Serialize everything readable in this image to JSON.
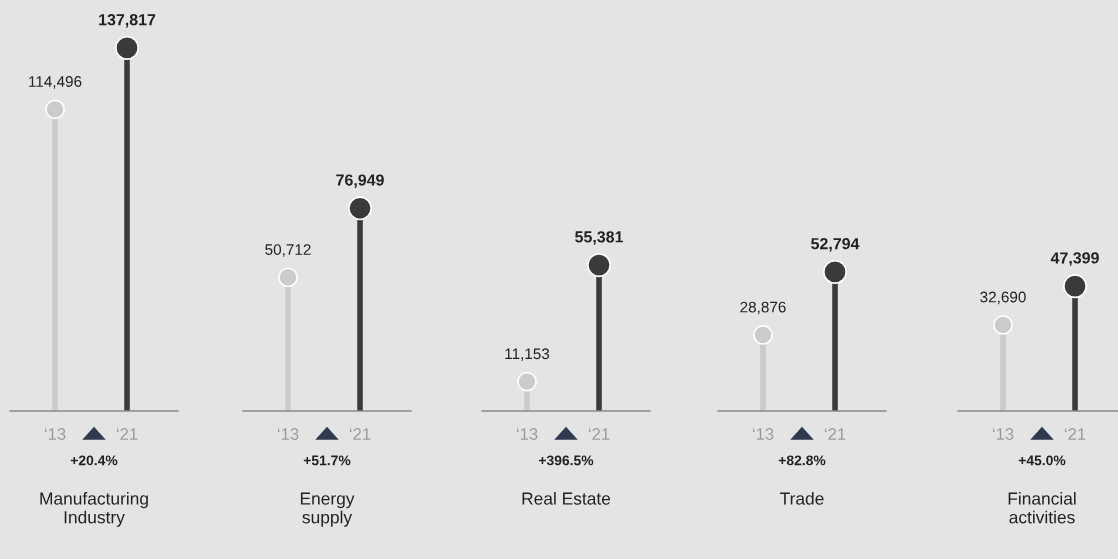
{
  "chart_data": [
    {
      "type": "lollipop",
      "xlabel": "Manufacturing\nIndustry",
      "categories": [
        "‘13",
        "‘21"
      ],
      "values": [
        114496,
        137817
      ],
      "value_labels": [
        "114,496",
        "137,817"
      ],
      "colors": [
        "#cbcbcb",
        "#3a3a3a"
      ],
      "tick_labels": "x",
      "marker": "circle",
      "annotations": [
        "+20.4%"
      ]
    },
    {
      "type": "lollipop",
      "xlabel": "Energy\nsupply",
      "categories": [
        "‘13",
        "‘21"
      ],
      "values": [
        50712,
        76949
      ],
      "value_labels": [
        "50,712",
        "76,949"
      ],
      "colors": [
        "#cbcbcb",
        "#3a3a3a"
      ],
      "tick_labels": "x",
      "marker": "circle",
      "annotations": [
        "+51.7%"
      ]
    },
    {
      "type": "lollipop",
      "xlabel": "Real Estate",
      "categories": [
        "‘13",
        "‘21"
      ],
      "values": [
        11153,
        55381
      ],
      "value_labels": [
        "11,153",
        "55,381"
      ],
      "colors": [
        "#cbcbcb",
        "#3a3a3a"
      ],
      "tick_labels": "x",
      "marker": "circle",
      "annotations": [
        "+396.5%"
      ]
    },
    {
      "type": "lollipop",
      "xlabel": "Trade",
      "categories": [
        "‘13",
        "‘21"
      ],
      "values": [
        28876,
        52794
      ],
      "value_labels": [
        "28,876",
        "52,794"
      ],
      "colors": [
        "#cbcbcb",
        "#3a3a3a"
      ],
      "tick_labels": "x",
      "marker": "circle",
      "annotations": [
        "+82.8%"
      ]
    },
    {
      "type": "lollipop",
      "xlabel": "Financial\nactivities",
      "categories": [
        "‘13",
        "‘21"
      ],
      "values": [
        32690,
        47399
      ],
      "value_labels": [
        "32,690",
        "47,399"
      ],
      "colors": [
        "#cbcbcb",
        "#3a3a3a"
      ],
      "tick_labels": "x",
      "marker": "circle",
      "annotations": [
        "+45.0%"
      ]
    }
  ]
}
